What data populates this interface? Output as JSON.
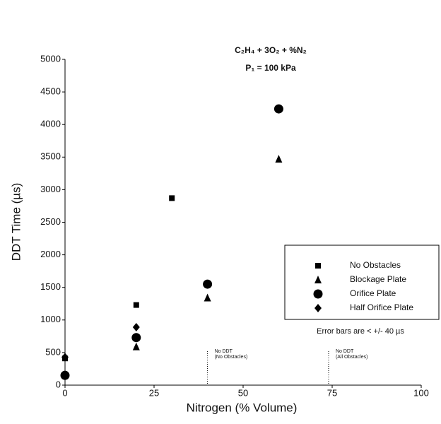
{
  "chart_data": {
    "type": "scatter",
    "title": "C₂H₄ + 3O₂ + %N₂",
    "subtitle": "P₁ = 100 kPa",
    "x_label": "Nitrogen (% Volume)",
    "y_label": "DDT Time (µs)",
    "xlim": [
      0,
      100
    ],
    "xticks": [
      0,
      25,
      50,
      75,
      100
    ],
    "ylim": [
      0,
      5000
    ],
    "yticks": [
      0,
      500,
      1000,
      1500,
      2000,
      2500,
      3000,
      3500,
      4000,
      4500,
      5000
    ],
    "note": "Error bars are < +/- 40 µs",
    "annotations": [
      {
        "x": 40,
        "lines": [
          "No DDT",
          "(No Obstacles)"
        ]
      },
      {
        "x": 74,
        "lines": [
          "No DDT",
          "(All Obstacles)"
        ]
      }
    ],
    "series": [
      {
        "name": "No Obstacles",
        "marker": "square",
        "color": "#000000",
        "x": [
          0,
          20,
          30
        ],
        "values": [
          410,
          1230,
          2870
        ]
      },
      {
        "name": "Blockage Plate",
        "marker": "triangle",
        "color": "#000000",
        "x": [
          20,
          40,
          60
        ],
        "values": [
          590,
          1340,
          3470
        ]
      },
      {
        "name": "Orifice Plate",
        "marker": "circle",
        "color": "#000000",
        "x": [
          0,
          20,
          40,
          60
        ],
        "values": [
          150,
          730,
          1550,
          4240
        ]
      },
      {
        "name": "Half Orifice Plate",
        "marker": "diamond",
        "color": "#000000",
        "x": [
          0,
          20
        ],
        "values": [
          430,
          890
        ]
      }
    ]
  }
}
